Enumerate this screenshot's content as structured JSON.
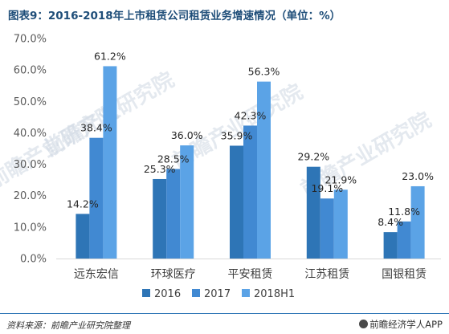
{
  "title": "图表9：2016-2018年上市租赁公司租赁业务增速情况（单位：%）",
  "source": "资料来源：前瞻产业研究院整理",
  "brand": "前瞻经济学人APP",
  "watermark": "前瞻产业研究院",
  "colors": [
    "#2e75b6",
    "#4189d2",
    "#5ba3e6"
  ],
  "chart_data": {
    "type": "bar",
    "title": "图表9：2016-2018年上市租赁公司租赁业务增速情况（单位：%）",
    "categories": [
      "远东宏信",
      "环球医疗",
      "平安租赁",
      "江苏租赁",
      "国银租赁"
    ],
    "series": [
      {
        "name": "2016",
        "values": [
          14.2,
          25.3,
          35.9,
          29.2,
          8.4
        ]
      },
      {
        "name": "2017",
        "values": [
          38.4,
          28.5,
          42.3,
          19.1,
          11.8
        ]
      },
      {
        "name": "2018H1",
        "values": [
          61.2,
          36.0,
          56.3,
          21.9,
          23.0
        ]
      }
    ],
    "ylim": [
      0,
      70
    ],
    "yticks": [
      "0.0%",
      "10.0%",
      "20.0%",
      "30.0%",
      "40.0%",
      "50.0%",
      "60.0%",
      "70.0%"
    ],
    "grid": false,
    "legend": "bottom-center",
    "value_format": "%"
  }
}
